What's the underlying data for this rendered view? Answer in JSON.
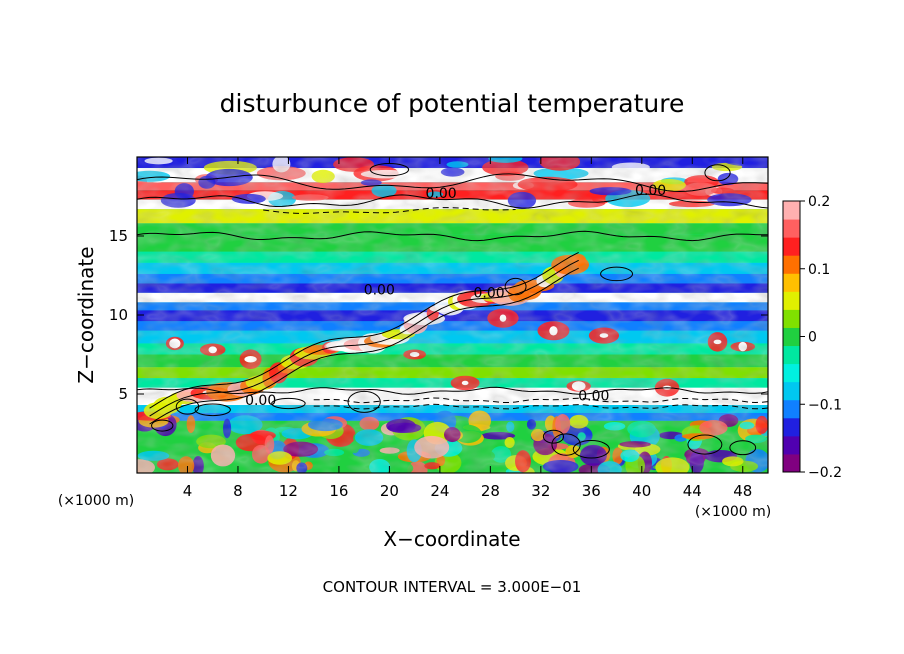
{
  "chart_data": {
    "type": "heatmap",
    "title": "disturbunce of potential temperature",
    "xlabel": "X−coordinate",
    "ylabel": "Z−coordinate",
    "x_unit": "(×1000 m)",
    "y_unit": "(×1000 m)",
    "footnote": "CONTOUR INTERVAL = 3.000E−01",
    "xlim": [
      0,
      50
    ],
    "ylim": [
      0,
      20
    ],
    "xticks": [
      "4",
      "8",
      "12",
      "16",
      "20",
      "24",
      "28",
      "32",
      "36",
      "40",
      "44",
      "48"
    ],
    "yticks": [
      "5",
      "10",
      "15"
    ],
    "colorbar": {
      "range": [
        -0.2,
        0.2
      ],
      "ticks": [
        "0.2",
        "0.1",
        "0",
        "−0.1",
        "−0.2"
      ],
      "colors": [
        "#800080",
        "#5000b0",
        "#2020e0",
        "#1080ff",
        "#00c8f0",
        "#00f0e0",
        "#00e8a0",
        "#20d040",
        "#80e000",
        "#e0f000",
        "#ffc000",
        "#ff7000",
        "#ff2020",
        "#ff6060",
        "#ffb0b0"
      ]
    },
    "contour_labels": [
      {
        "text": "0.00",
        "x": 24.1,
        "z": 17.4
      },
      {
        "text": "0.00",
        "x": 40.7,
        "z": 17.6
      },
      {
        "text": "0.00",
        "x": 19.2,
        "z": 11.3
      },
      {
        "text": "0.00",
        "x": 27.9,
        "z": 11.1
      },
      {
        "text": "0.00",
        "x": 36.2,
        "z": 4.6
      },
      {
        "text": "0.00",
        "x": 9.8,
        "z": 4.3
      }
    ]
  }
}
